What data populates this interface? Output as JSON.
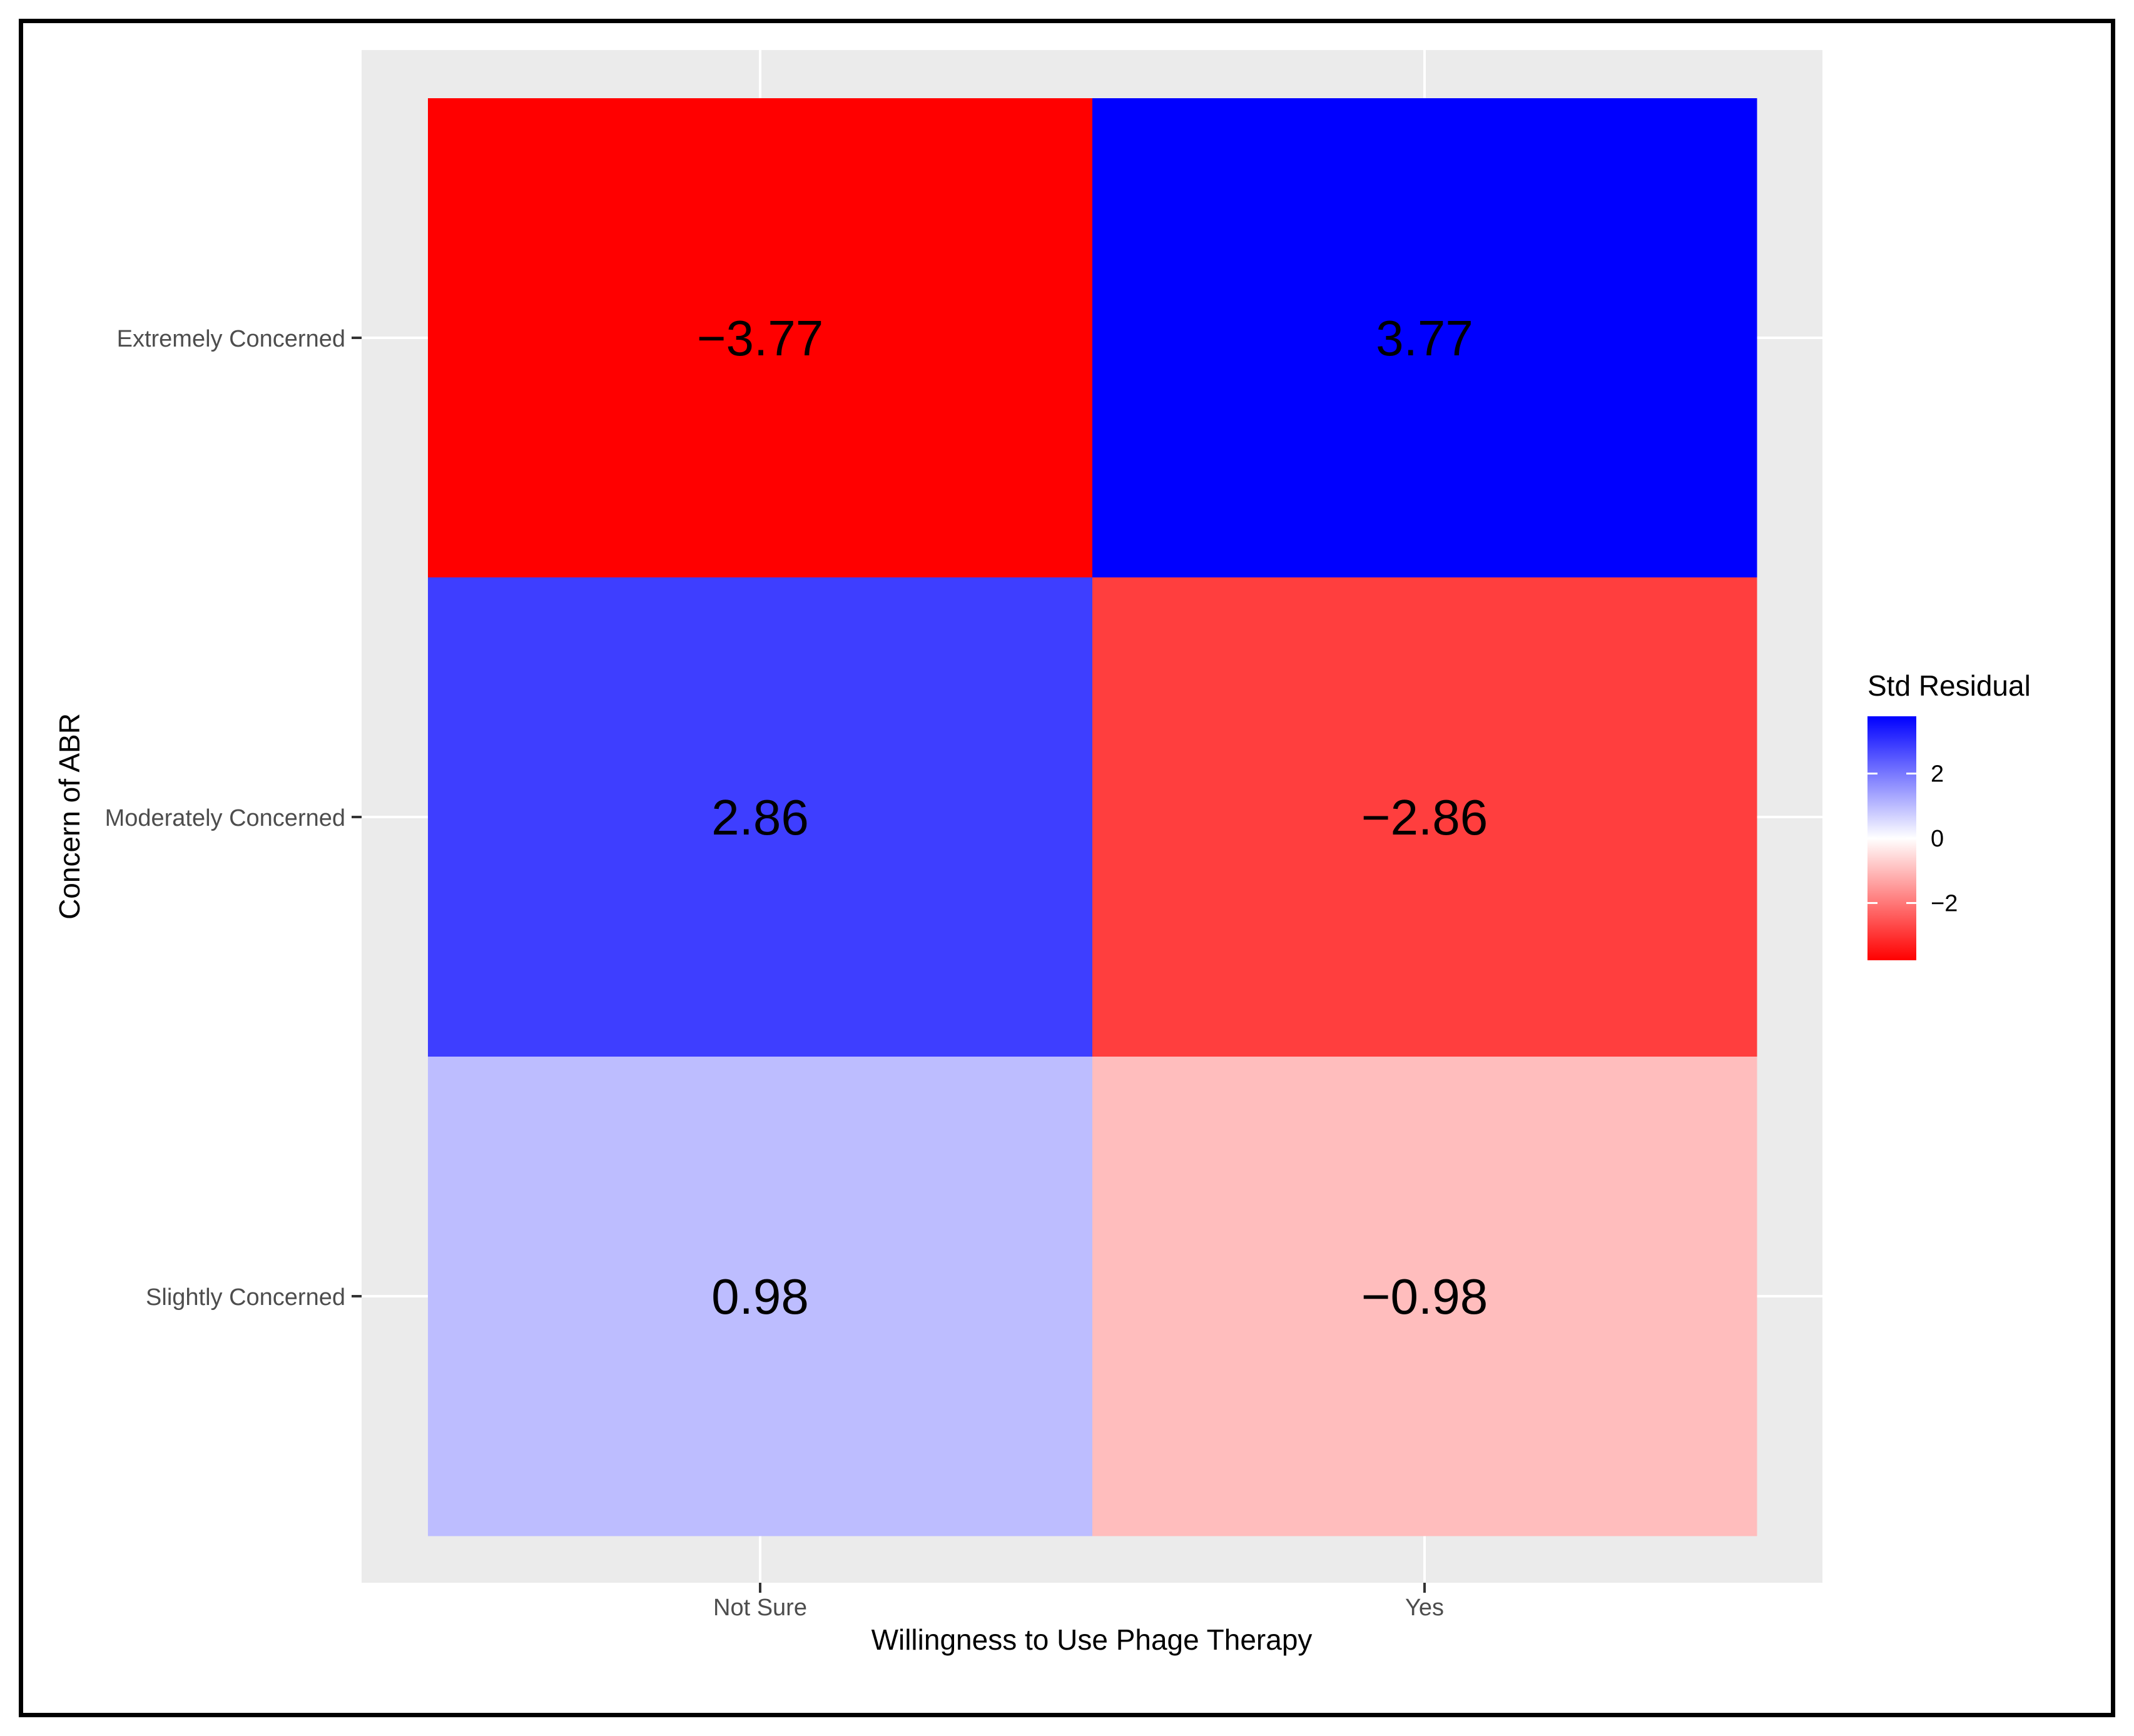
{
  "chart_data": {
    "type": "heatmap",
    "xlabel": "Willingness to Use Phage Therapy",
    "ylabel": "Concern of ABR",
    "x_categories": [
      "Not Sure",
      "Yes"
    ],
    "y_categories": [
      "Extremely Concerned",
      "Moderately Concerned",
      "Slightly Concerned"
    ],
    "cells": [
      {
        "x": "Not Sure",
        "y": "Extremely Concerned",
        "value": -3.77,
        "label": "−3.77"
      },
      {
        "x": "Yes",
        "y": "Extremely Concerned",
        "value": 3.77,
        "label": "3.77"
      },
      {
        "x": "Not Sure",
        "y": "Moderately Concerned",
        "value": 2.86,
        "label": "2.86"
      },
      {
        "x": "Yes",
        "y": "Moderately Concerned",
        "value": -2.86,
        "label": "−2.86"
      },
      {
        "x": "Not Sure",
        "y": "Slightly Concerned",
        "value": 0.98,
        "label": "0.98"
      },
      {
        "x": "Yes",
        "y": "Slightly Concerned",
        "value": -0.98,
        "label": "−0.98"
      }
    ],
    "legend": {
      "title": "Std Residual",
      "ticks": [
        {
          "value": 2,
          "label": "2"
        },
        {
          "value": 0,
          "label": "0"
        },
        {
          "value": -2,
          "label": "−2"
        }
      ],
      "range": [
        -3.77,
        3.77
      ],
      "low_color": "#ff0000",
      "mid_color": "#ffffff",
      "high_color": "#0000ff"
    },
    "panel_background": "#ebebeb",
    "grid_color": "#ffffff"
  }
}
